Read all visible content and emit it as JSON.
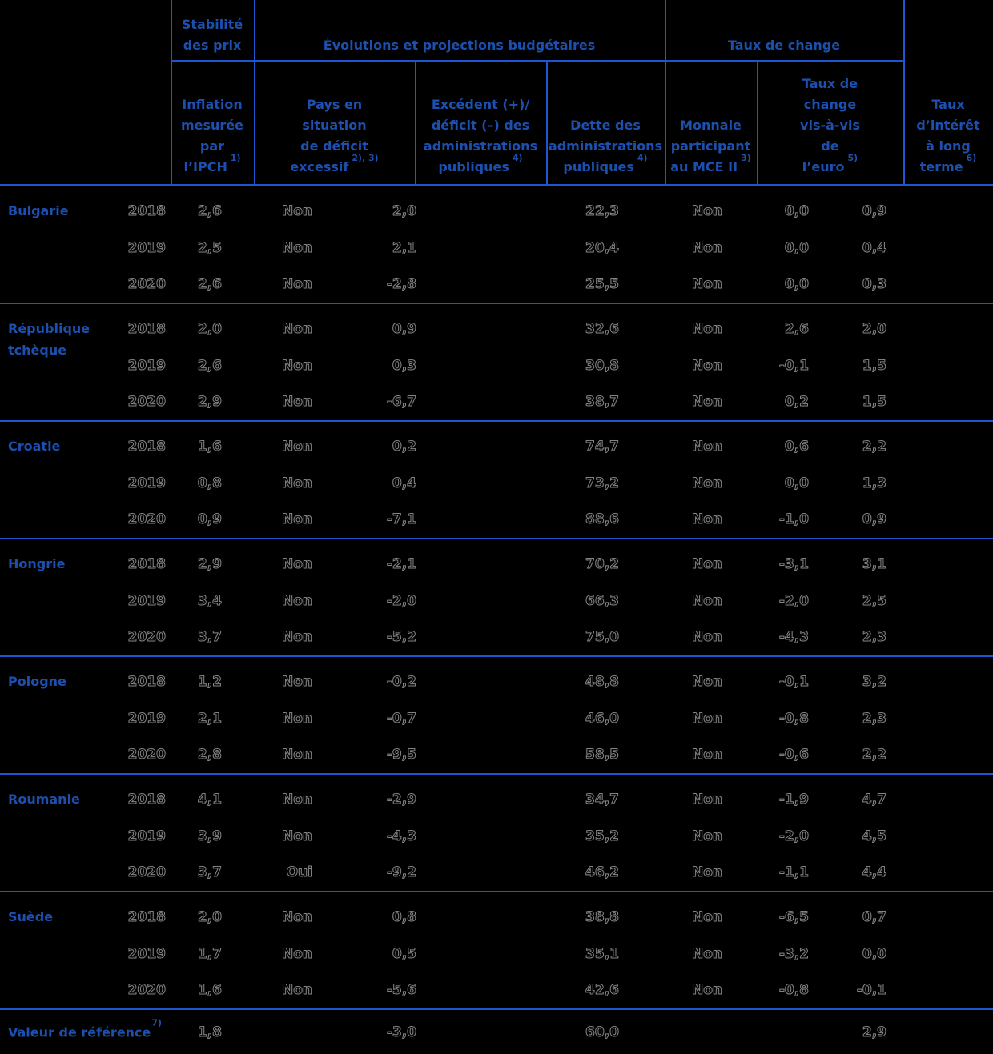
{
  "colors": {
    "accent_blue": "#1c4fae",
    "line_blue": "#1e55d0",
    "background": "#000000",
    "data_text": "#050505"
  },
  "chart_data": {
    "type": "table",
    "group_headers": {
      "price_stability": "Stabilité des prix",
      "fiscal": "Évolutions et projections budgétaires",
      "exchange_rate": "Taux de change"
    },
    "columns": {
      "year": {
        "label": ""
      },
      "inflation": {
        "label": "Inflation mesurée par l’IPCH",
        "sup": "1)",
        "wrapped": "Inflation\nmesurée\npar\nl’IPCH"
      },
      "edp": {
        "label": "Pays en situation de déficit excessif",
        "sup": "2), 3)",
        "wrapped": "Pays en\nsituation\nde déficit\nexcessif"
      },
      "balance": {
        "label": "Excédent (+)/ déficit (–) des administrations publiques",
        "sup": "4)",
        "wrapped": "Excédent (+)/\ndéficit (–) des\nadministrations\npubliques"
      },
      "debt": {
        "label": "Dette des administrations publiques",
        "sup": "4)",
        "wrapped": "Dette des\nadministrations\npubliques"
      },
      "erm": {
        "label": "Monnaie participant au MCE II",
        "sup": "3)",
        "wrapped": "Monnaie\nparticipant\nau MCE II"
      },
      "fx": {
        "label": "Taux de change vis-à-vis de l’euro",
        "sup": "5)",
        "wrapped": "Taux de\nchange\nvis-à-vis\nde\nl’euro"
      },
      "ltir": {
        "label": "Taux d’intérêt à long terme",
        "sup": "6)",
        "wrapped": "Taux\nd’intérêt\nà long\nterme"
      }
    },
    "column_order": [
      "year",
      "inflation",
      "edp",
      "balance",
      "debt",
      "erm",
      "fx",
      "ltir"
    ],
    "countries": [
      {
        "name": "Bulgarie",
        "rows": [
          [
            "2018",
            "2,6",
            "Non",
            "2,0",
            "22,3",
            "Non",
            "0,0",
            "0,9"
          ],
          [
            "2019",
            "2,5",
            "Non",
            "2,1",
            "20,4",
            "Non",
            "0,0",
            "0,4"
          ],
          [
            "2020",
            "2,6",
            "Non",
            "-2,8",
            "25,5",
            "Non",
            "0,0",
            "0,3"
          ]
        ]
      },
      {
        "name": "République tchèque",
        "rows": [
          [
            "2018",
            "2,0",
            "Non",
            "0,9",
            "32,6",
            "Non",
            "2,6",
            "2,0"
          ],
          [
            "2019",
            "2,6",
            "Non",
            "0,3",
            "30,8",
            "Non",
            "-0,1",
            "1,5"
          ],
          [
            "2020",
            "2,9",
            "Non",
            "-6,7",
            "38,7",
            "Non",
            "0,2",
            "1,5"
          ]
        ]
      },
      {
        "name": "Croatie",
        "rows": [
          [
            "2018",
            "1,6",
            "Non",
            "0,2",
            "74,7",
            "Non",
            "0,6",
            "2,2"
          ],
          [
            "2019",
            "0,8",
            "Non",
            "0,4",
            "73,2",
            "Non",
            "0,0",
            "1,3"
          ],
          [
            "2020",
            "0,9",
            "Non",
            "-7,1",
            "88,6",
            "Non",
            "-1,0",
            "0,9"
          ]
        ]
      },
      {
        "name": "Hongrie",
        "rows": [
          [
            "2018",
            "2,9",
            "Non",
            "-2,1",
            "70,2",
            "Non",
            "-3,1",
            "3,1"
          ],
          [
            "2019",
            "3,4",
            "Non",
            "-2,0",
            "66,3",
            "Non",
            "-2,0",
            "2,5"
          ],
          [
            "2020",
            "3,7",
            "Non",
            "-5,2",
            "75,0",
            "Non",
            "-4,3",
            "2,3"
          ]
        ]
      },
      {
        "name": "Pologne",
        "rows": [
          [
            "2018",
            "1,2",
            "Non",
            "-0,2",
            "48,8",
            "Non",
            "-0,1",
            "3,2"
          ],
          [
            "2019",
            "2,1",
            "Non",
            "-0,7",
            "46,0",
            "Non",
            "-0,8",
            "2,3"
          ],
          [
            "2020",
            "2,8",
            "Non",
            "-9,5",
            "58,5",
            "Non",
            "-0,6",
            "2,2"
          ]
        ]
      },
      {
        "name": "Roumanie",
        "rows": [
          [
            "2018",
            "4,1",
            "Non",
            "-2,9",
            "34,7",
            "Non",
            "-1,9",
            "4,7"
          ],
          [
            "2019",
            "3,9",
            "Non",
            "-4,3",
            "35,2",
            "Non",
            "-2,0",
            "4,5"
          ],
          [
            "2020",
            "3,7",
            "Oui",
            "-9,2",
            "46,2",
            "Non",
            "-1,1",
            "4,4"
          ]
        ]
      },
      {
        "name": "Suède",
        "rows": [
          [
            "2018",
            "2,0",
            "Non",
            "0,8",
            "38,8",
            "Non",
            "-6,5",
            "0,7"
          ],
          [
            "2019",
            "1,7",
            "Non",
            "0,5",
            "35,1",
            "Non",
            "-3,2",
            "0,0"
          ],
          [
            "2020",
            "1,6",
            "Non",
            "-5,6",
            "42,6",
            "Non",
            "-0,8",
            "-0,1"
          ]
        ]
      }
    ],
    "reference": {
      "label": "Valeur de référence",
      "sup": "7)",
      "values": {
        "inflation": "1,8",
        "balance": "-3,0",
        "debt": "60,0",
        "ltir": "2,9"
      }
    }
  }
}
